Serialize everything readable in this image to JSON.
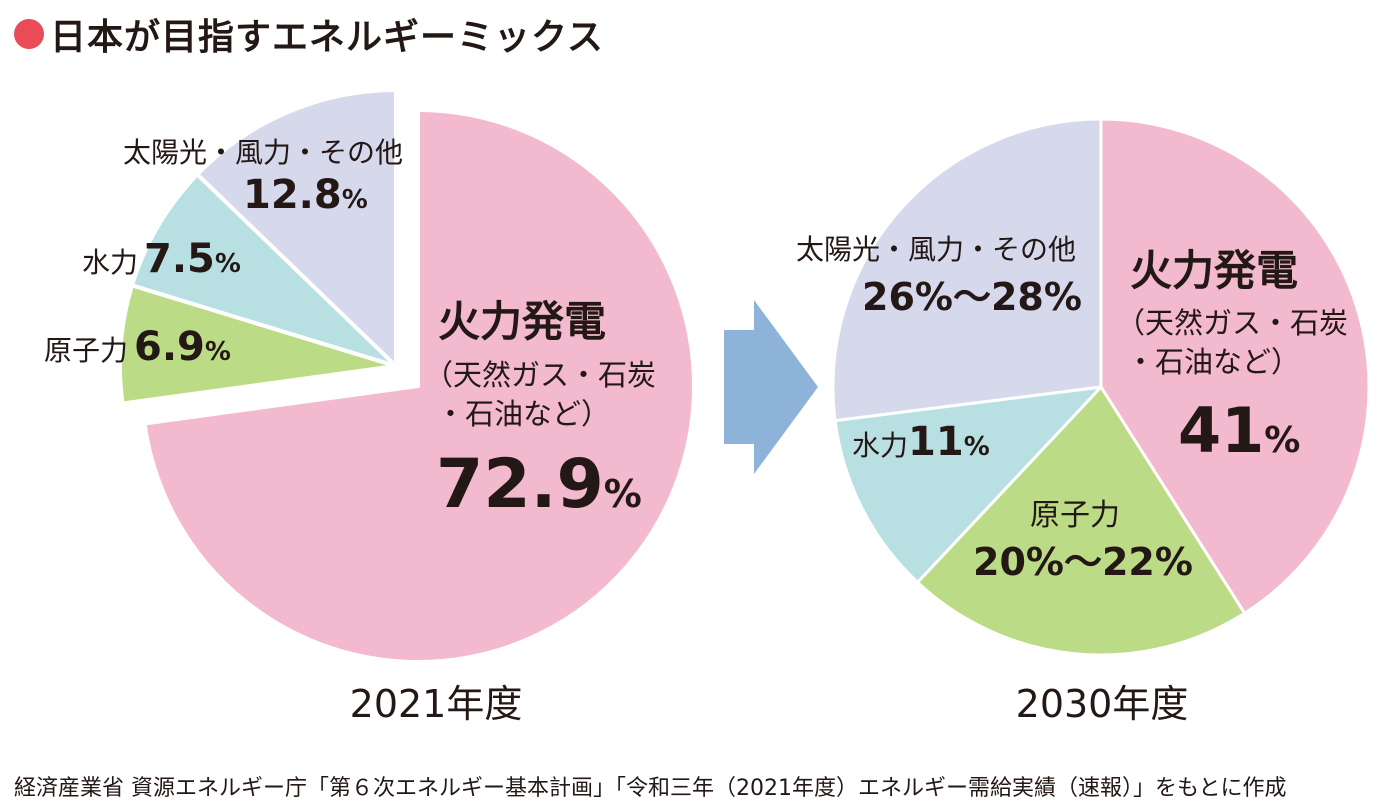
{
  "title": "日本が目指すエネルギーミックス",
  "colors": {
    "title_dot": "#e94c56",
    "thermal": "#f3b9ce",
    "renewable": "#d6d8ec",
    "hydro": "#b8dfe1",
    "nuclear": "#bcdb87",
    "arrow": "#8db3d9"
  },
  "chart_data": [
    {
      "type": "pie",
      "xlabel": "2021年度",
      "slices": [
        {
          "key": "thermal",
          "label": "火力発電",
          "sublabel1": "（天然ガス・石炭",
          "sublabel2": "・石油など）",
          "value": 72.9,
          "value_label": "72.9",
          "unit": "%"
        },
        {
          "key": "nuclear",
          "label": "原子力",
          "value": 6.9,
          "value_label": "6.9",
          "unit": "%"
        },
        {
          "key": "hydro",
          "label": "水力",
          "value": 7.5,
          "value_label": "7.5",
          "unit": "%"
        },
        {
          "key": "renewable",
          "label": "太陽光・風力・その他",
          "value": 12.8,
          "value_label": "12.8",
          "unit": "%"
        }
      ]
    },
    {
      "type": "pie",
      "xlabel": "2030年度",
      "slices": [
        {
          "key": "thermal",
          "label": "火力発電",
          "sublabel1": "（天然ガス・石炭",
          "sublabel2": "・石油など）",
          "value": 41,
          "value_label": "41",
          "unit": "%"
        },
        {
          "key": "nuclear",
          "label": "原子力",
          "value": 21,
          "value_label": "20%〜22%"
        },
        {
          "key": "hydro",
          "label": "水力",
          "value": 11,
          "value_label": "11",
          "unit": "%"
        },
        {
          "key": "renewable",
          "label": "太陽光・風力・その他",
          "value": 27,
          "value_label": "26%〜28%"
        }
      ]
    }
  ],
  "source": "経済産業省 資源エネルギー庁「第６次エネルギー基本計画」「令和三年（2021年度）エネルギー需給実績（速報）」をもとに作成"
}
